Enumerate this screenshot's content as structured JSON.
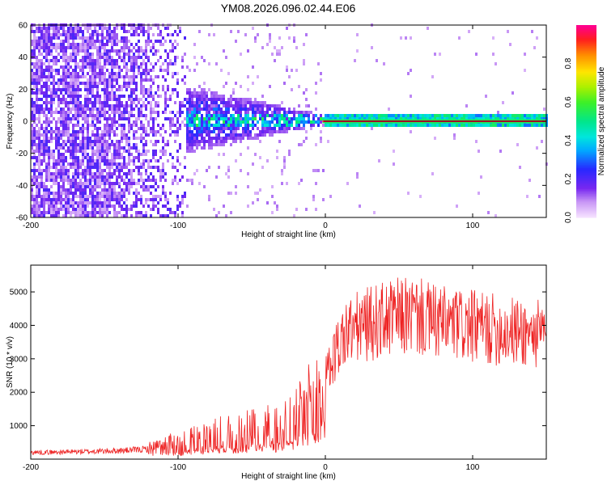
{
  "title": "YM08.2026.096.02.44.E06",
  "colors": {
    "signal_line": "#ee2222",
    "centerline": "#000000",
    "background": "#ffffff"
  },
  "chart_data": [
    {
      "type": "heatmap",
      "title": "",
      "xlabel": "Height of straight line (km)",
      "ylabel": "Frequency (Hz)",
      "xlim": [
        -200,
        150
      ],
      "ylim": [
        -60,
        60
      ],
      "xticks": [
        -200,
        -100,
        0,
        100
      ],
      "yticks": [
        -60,
        -40,
        -20,
        0,
        20,
        40,
        60
      ],
      "colorbar": {
        "label": "Normalized spectral amplitude",
        "range": [
          0.0,
          1.0
        ],
        "ticks": [
          0.0,
          0.2,
          0.4,
          0.6,
          0.8
        ],
        "tick_labels": [
          "0.0",
          "0.2",
          "0.4",
          "0.6",
          "0.8"
        ]
      },
      "features": {
        "strong_line_frequency_hz": 0,
        "strong_line_start_km": -2,
        "strong_line_end_km": 150,
        "strong_line_amplitude": 0.95,
        "noise_region_end_km": -95,
        "noise_region_amplitude": 0.15,
        "transition_region_amplitude": 0.35
      }
    },
    {
      "type": "line",
      "title": "",
      "xlabel": "Height of straight line (km)",
      "ylabel": "SNR (10 * v/v)",
      "xlim": [
        -200,
        150
      ],
      "ylim": [
        0,
        5800
      ],
      "xticks": [
        -200,
        -100,
        0,
        100
      ],
      "yticks": [
        1000,
        2000,
        3000,
        4000,
        5000
      ],
      "series": [
        {
          "name": "SNR",
          "x": [
            -200,
            -180,
            -160,
            -140,
            -120,
            -110,
            -100,
            -90,
            -80,
            -70,
            -60,
            -50,
            -40,
            -30,
            -20,
            -15,
            -10,
            -5,
            0,
            5,
            10,
            15,
            20,
            30,
            40,
            50,
            60,
            70,
            80,
            90,
            100,
            110,
            120,
            130,
            140,
            150
          ],
          "values": [
            200,
            210,
            230,
            250,
            300,
            380,
            500,
            600,
            700,
            760,
            820,
            880,
            950,
            1050,
            1200,
            1500,
            1700,
            1900,
            2400,
            3000,
            3500,
            3800,
            3900,
            4050,
            4150,
            4250,
            4300,
            4150,
            4050,
            4000,
            3950,
            3900,
            3850,
            3800,
            3750,
            3700
          ]
        }
      ]
    }
  ]
}
